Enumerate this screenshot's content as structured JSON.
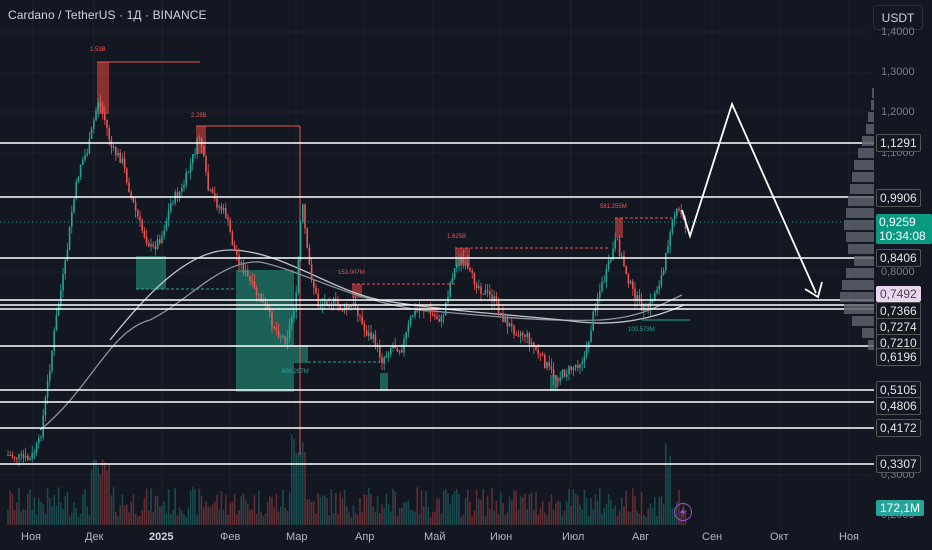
{
  "header": {
    "symbol_title": "Cardano / TetherUS · 1Д · BINANCE",
    "currency_button": "USDT"
  },
  "price_axis": {
    "ticks": [
      "1,4000",
      "1,3000",
      "1,2000",
      "1,1000",
      "0,8000",
      "0,3000",
      "0,2000"
    ],
    "levels": [
      "1,1291",
      "0,9906",
      "0,8406",
      "0,7366",
      "0,7274",
      "0,7210",
      "0,6196",
      "0,5105",
      "0,4806",
      "0,4172",
      "0,3307"
    ],
    "current_price": "0,9259",
    "countdown": "10:34:08",
    "marked_price": "0,7492",
    "volume": "172,1M"
  },
  "time_axis": [
    "Ноя",
    "Дек",
    "2025",
    "Фев",
    "Мар",
    "Апр",
    "Май",
    "Июн",
    "Июл",
    "Авг",
    "Сен",
    "Окт",
    "Ноя"
  ],
  "annotations": [
    "1.53B",
    "2.28B",
    "1.625B",
    "581.255M",
    "100.573M",
    "153.007M",
    "600.287M"
  ],
  "icons": {
    "lightning": "lightning-icon"
  },
  "colors": {
    "up": "#26a69a",
    "down": "#ef5350",
    "background": "#131722",
    "level_line": "#ffffff",
    "projection": "#ffffff"
  }
}
